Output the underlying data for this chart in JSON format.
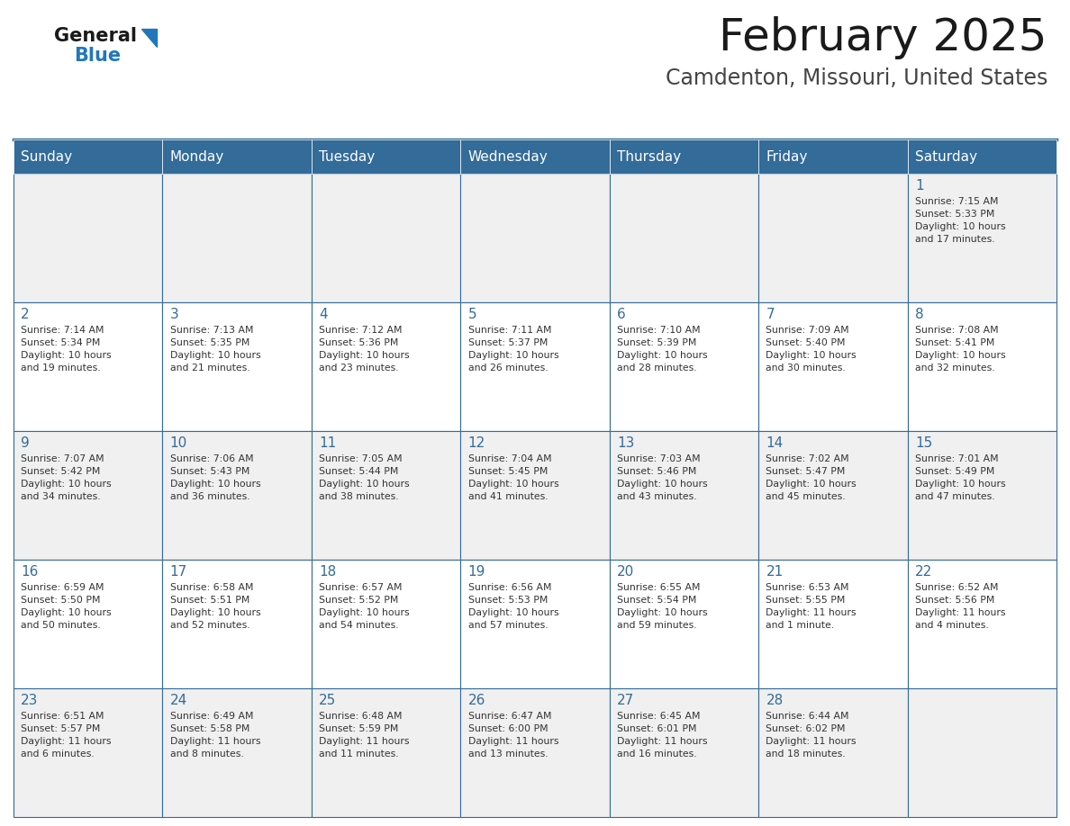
{
  "title": "February 2025",
  "subtitle": "Camdenton, Missouri, United States",
  "days_of_week": [
    "Sunday",
    "Monday",
    "Tuesday",
    "Wednesday",
    "Thursday",
    "Friday",
    "Saturday"
  ],
  "header_bg": "#336b99",
  "header_text_color": "#ffffff",
  "cell_bg_light": "#f0f0f0",
  "cell_bg_white": "#ffffff",
  "cell_border_color": "#336b99",
  "title_color": "#1a1a1a",
  "subtitle_color": "#444444",
  "day_number_color": "#336b99",
  "text_color": "#333333",
  "logo_general_color": "#1a1a1a",
  "logo_blue_color": "#2277bb",
  "calendar_data": [
    [
      null,
      null,
      null,
      null,
      null,
      null,
      {
        "day": "1",
        "sunrise": "7:15 AM",
        "sunset": "5:33 PM",
        "daylight": "10 hours",
        "daylight2": "and 17 minutes."
      }
    ],
    [
      {
        "day": "2",
        "sunrise": "7:14 AM",
        "sunset": "5:34 PM",
        "daylight": "10 hours",
        "daylight2": "and 19 minutes."
      },
      {
        "day": "3",
        "sunrise": "7:13 AM",
        "sunset": "5:35 PM",
        "daylight": "10 hours",
        "daylight2": "and 21 minutes."
      },
      {
        "day": "4",
        "sunrise": "7:12 AM",
        "sunset": "5:36 PM",
        "daylight": "10 hours",
        "daylight2": "and 23 minutes."
      },
      {
        "day": "5",
        "sunrise": "7:11 AM",
        "sunset": "5:37 PM",
        "daylight": "10 hours",
        "daylight2": "and 26 minutes."
      },
      {
        "day": "6",
        "sunrise": "7:10 AM",
        "sunset": "5:39 PM",
        "daylight": "10 hours",
        "daylight2": "and 28 minutes."
      },
      {
        "day": "7",
        "sunrise": "7:09 AM",
        "sunset": "5:40 PM",
        "daylight": "10 hours",
        "daylight2": "and 30 minutes."
      },
      {
        "day": "8",
        "sunrise": "7:08 AM",
        "sunset": "5:41 PM",
        "daylight": "10 hours",
        "daylight2": "and 32 minutes."
      }
    ],
    [
      {
        "day": "9",
        "sunrise": "7:07 AM",
        "sunset": "5:42 PM",
        "daylight": "10 hours",
        "daylight2": "and 34 minutes."
      },
      {
        "day": "10",
        "sunrise": "7:06 AM",
        "sunset": "5:43 PM",
        "daylight": "10 hours",
        "daylight2": "and 36 minutes."
      },
      {
        "day": "11",
        "sunrise": "7:05 AM",
        "sunset": "5:44 PM",
        "daylight": "10 hours",
        "daylight2": "and 38 minutes."
      },
      {
        "day": "12",
        "sunrise": "7:04 AM",
        "sunset": "5:45 PM",
        "daylight": "10 hours",
        "daylight2": "and 41 minutes."
      },
      {
        "day": "13",
        "sunrise": "7:03 AM",
        "sunset": "5:46 PM",
        "daylight": "10 hours",
        "daylight2": "and 43 minutes."
      },
      {
        "day": "14",
        "sunrise": "7:02 AM",
        "sunset": "5:47 PM",
        "daylight": "10 hours",
        "daylight2": "and 45 minutes."
      },
      {
        "day": "15",
        "sunrise": "7:01 AM",
        "sunset": "5:49 PM",
        "daylight": "10 hours",
        "daylight2": "and 47 minutes."
      }
    ],
    [
      {
        "day": "16",
        "sunrise": "6:59 AM",
        "sunset": "5:50 PM",
        "daylight": "10 hours",
        "daylight2": "and 50 minutes."
      },
      {
        "day": "17",
        "sunrise": "6:58 AM",
        "sunset": "5:51 PM",
        "daylight": "10 hours",
        "daylight2": "and 52 minutes."
      },
      {
        "day": "18",
        "sunrise": "6:57 AM",
        "sunset": "5:52 PM",
        "daylight": "10 hours",
        "daylight2": "and 54 minutes."
      },
      {
        "day": "19",
        "sunrise": "6:56 AM",
        "sunset": "5:53 PM",
        "daylight": "10 hours",
        "daylight2": "and 57 minutes."
      },
      {
        "day": "20",
        "sunrise": "6:55 AM",
        "sunset": "5:54 PM",
        "daylight": "10 hours",
        "daylight2": "and 59 minutes."
      },
      {
        "day": "21",
        "sunrise": "6:53 AM",
        "sunset": "5:55 PM",
        "daylight": "11 hours",
        "daylight2": "and 1 minute."
      },
      {
        "day": "22",
        "sunrise": "6:52 AM",
        "sunset": "5:56 PM",
        "daylight": "11 hours",
        "daylight2": "and 4 minutes."
      }
    ],
    [
      {
        "day": "23",
        "sunrise": "6:51 AM",
        "sunset": "5:57 PM",
        "daylight": "11 hours",
        "daylight2": "and 6 minutes."
      },
      {
        "day": "24",
        "sunrise": "6:49 AM",
        "sunset": "5:58 PM",
        "daylight": "11 hours",
        "daylight2": "and 8 minutes."
      },
      {
        "day": "25",
        "sunrise": "6:48 AM",
        "sunset": "5:59 PM",
        "daylight": "11 hours",
        "daylight2": "and 11 minutes."
      },
      {
        "day": "26",
        "sunrise": "6:47 AM",
        "sunset": "6:00 PM",
        "daylight": "11 hours",
        "daylight2": "and 13 minutes."
      },
      {
        "day": "27",
        "sunrise": "6:45 AM",
        "sunset": "6:01 PM",
        "daylight": "11 hours",
        "daylight2": "and 16 minutes."
      },
      {
        "day": "28",
        "sunrise": "6:44 AM",
        "sunset": "6:02 PM",
        "daylight": "11 hours",
        "daylight2": "and 18 minutes."
      },
      null
    ]
  ]
}
